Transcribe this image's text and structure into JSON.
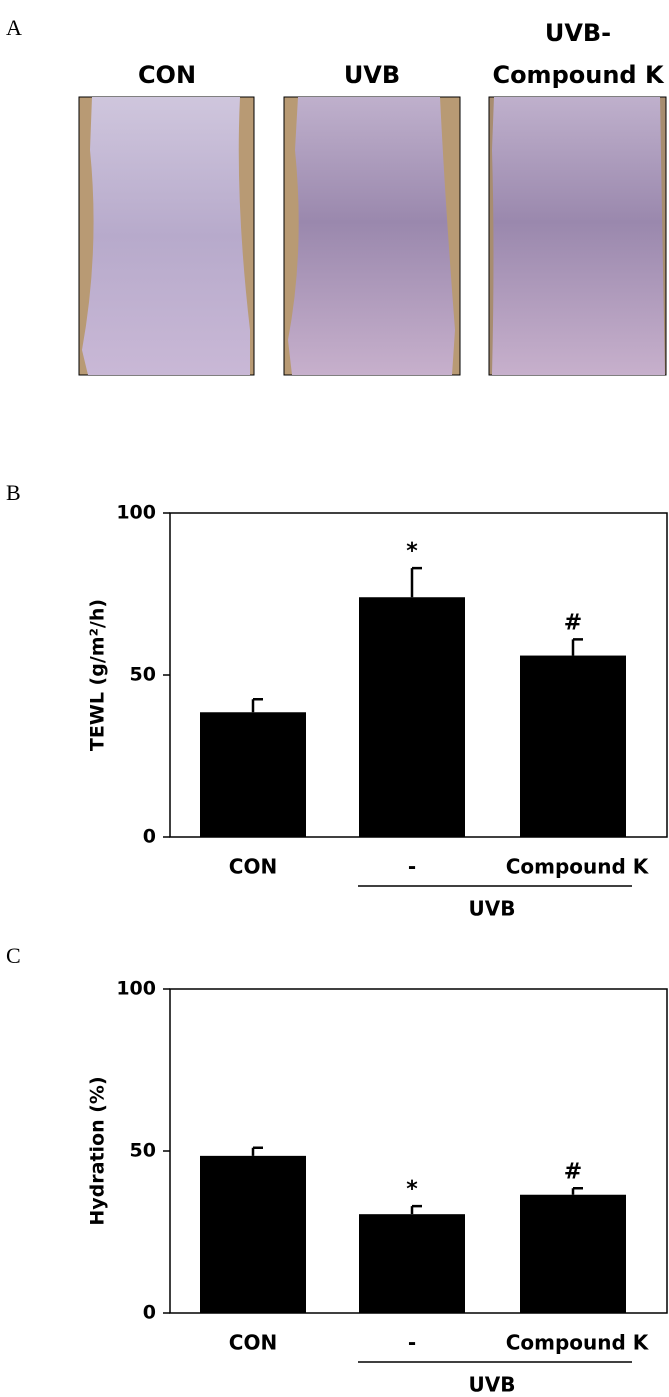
{
  "panel_a": {
    "label": "A",
    "images": [
      {
        "lines": [
          "CON"
        ]
      },
      {
        "lines": [
          "UVB"
        ]
      },
      {
        "lines": [
          "UVB-",
          "Compound K"
        ]
      }
    ]
  },
  "chart_data": [
    {
      "type": "bar",
      "panel_label": "B",
      "ylabel": "TEWL (g/m²/h)",
      "categories": [
        "CON",
        "-",
        "Compound K"
      ],
      "values": [
        38.5,
        74,
        56
      ],
      "errors": [
        4,
        9,
        5
      ],
      "significance": [
        null,
        "*",
        "#"
      ],
      "group_label": "UVB",
      "color": "#000000",
      "ylim": [
        0,
        100
      ],
      "yticks": [
        0,
        50,
        100
      ]
    },
    {
      "type": "bar",
      "panel_label": "C",
      "ylabel": "Hydration (%)",
      "categories": [
        "CON",
        "-",
        "Compound K"
      ],
      "values": [
        48.5,
        30.5,
        36.5
      ],
      "errors": [
        2.5,
        2.5,
        2
      ],
      "significance": [
        null,
        "*",
        "#"
      ],
      "group_label": "UVB",
      "color": "#000000",
      "ylim": [
        0,
        100
      ],
      "yticks": [
        0,
        50,
        100
      ]
    }
  ]
}
